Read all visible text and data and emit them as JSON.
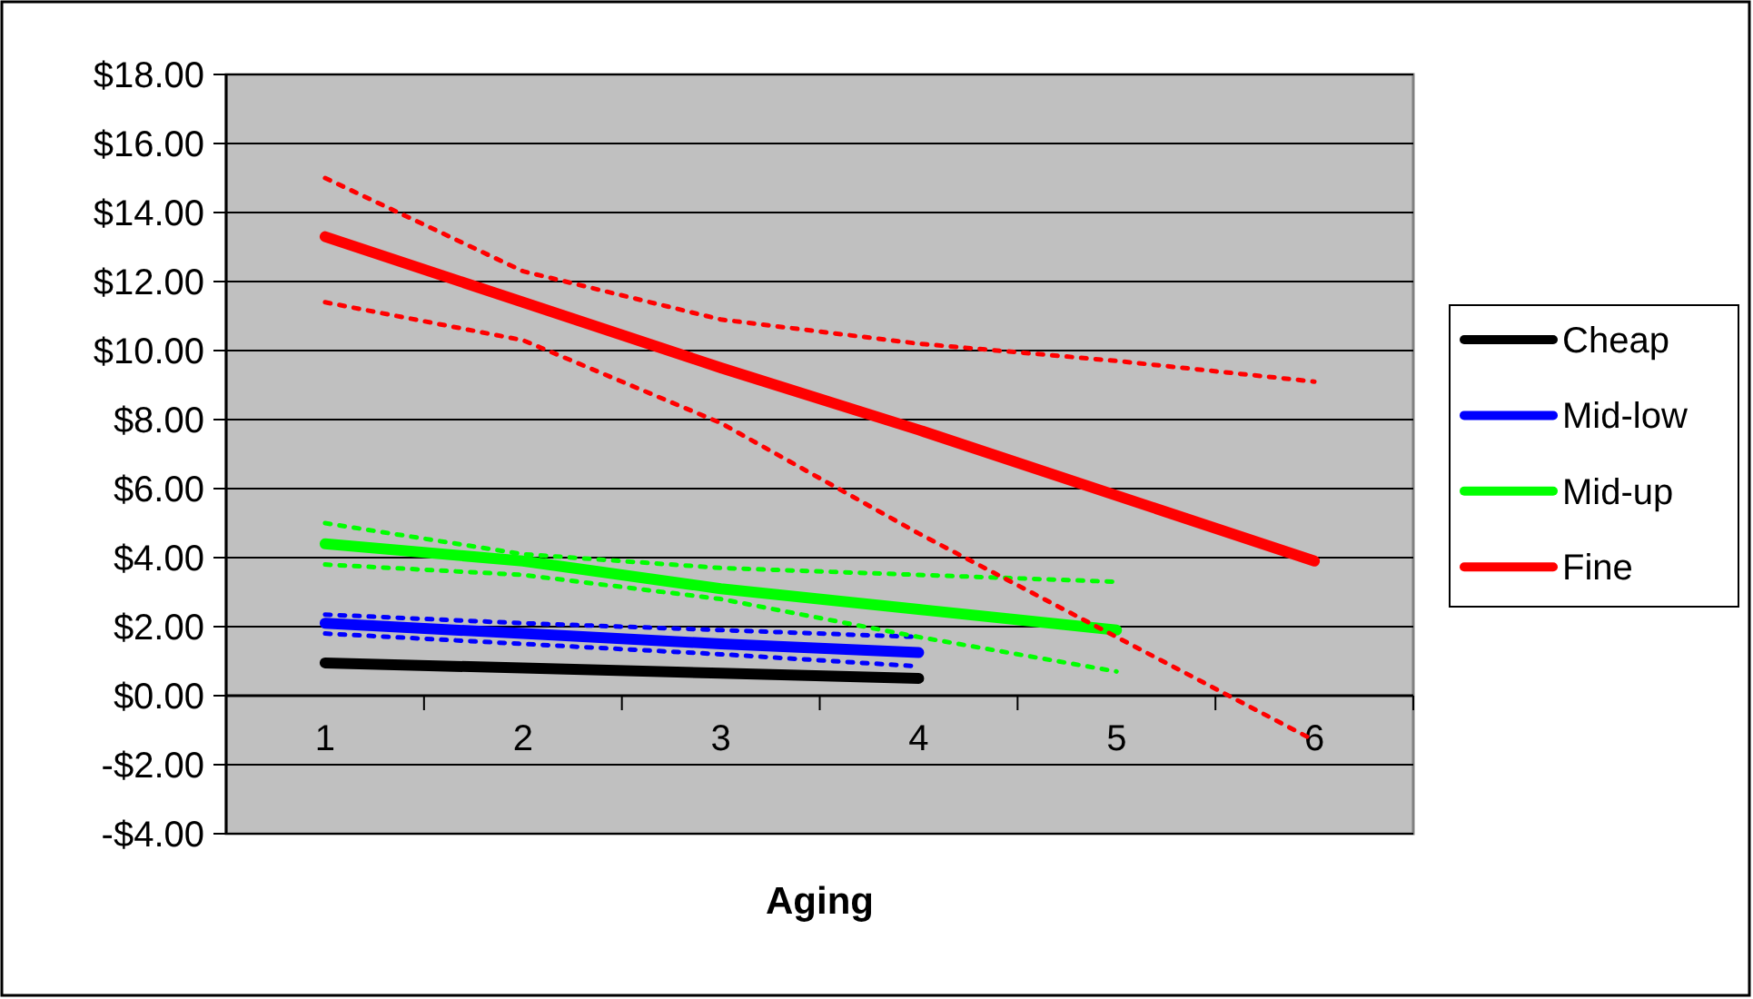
{
  "chart_data": {
    "type": "line",
    "xlabel": "Aging",
    "categories": [
      "1",
      "2",
      "3",
      "4",
      "5",
      "6"
    ],
    "series": [
      {
        "name": "Cheap",
        "color": "#000000",
        "values": [
          0.95,
          0.8,
          0.65,
          0.5,
          null,
          null
        ]
      },
      {
        "name": "Mid-low",
        "color": "#0000ff",
        "values": [
          2.1,
          1.8,
          1.5,
          1.25,
          null,
          null
        ]
      },
      {
        "color": "#0000ff",
        "line_style": "dotted",
        "values": [
          2.35,
          2.1,
          1.9,
          1.7,
          null,
          null
        ]
      },
      {
        "color": "#0000ff",
        "line_style": "dotted",
        "values": [
          1.8,
          1.5,
          1.2,
          0.85,
          null,
          null
        ]
      },
      {
        "name": "Mid-up",
        "color": "#00ff00",
        "values": [
          4.4,
          3.9,
          3.1,
          2.5,
          1.9,
          null
        ]
      },
      {
        "color": "#00ff00",
        "line_style": "dotted",
        "values": [
          5.0,
          4.1,
          3.7,
          3.5,
          3.3,
          null
        ]
      },
      {
        "color": "#00ff00",
        "line_style": "dotted",
        "values": [
          3.8,
          3.5,
          2.8,
          1.7,
          0.7,
          null
        ]
      },
      {
        "name": "Fine",
        "color": "#ff0000",
        "values": [
          13.3,
          11.4,
          9.5,
          7.7,
          5.8,
          3.9
        ]
      },
      {
        "color": "#ff0000",
        "line_style": "dotted",
        "values": [
          15.0,
          12.3,
          10.9,
          10.2,
          9.7,
          9.1
        ]
      },
      {
        "color": "#ff0000",
        "line_style": "dotted",
        "values": [
          11.4,
          10.3,
          7.9,
          4.7,
          1.7,
          -1.3
        ]
      }
    ],
    "ylim": [
      -4,
      18
    ],
    "yticks": [
      {
        "value": -4,
        "label": "-$4.00"
      },
      {
        "value": -2,
        "label": "-$2.00"
      },
      {
        "value": 0,
        "label": "$0.00"
      },
      {
        "value": 2,
        "label": "$2.00"
      },
      {
        "value": 4,
        "label": "$4.00"
      },
      {
        "value": 6,
        "label": "$6.00"
      },
      {
        "value": 8,
        "label": "$8.00"
      },
      {
        "value": 10,
        "label": "$10.00"
      },
      {
        "value": 12,
        "label": "$12.00"
      },
      {
        "value": 14,
        "label": "$14.00"
      },
      {
        "value": 16,
        "label": "$16.00"
      },
      {
        "value": 18,
        "label": "$18.00"
      }
    ],
    "grid": "y",
    "legend": "right",
    "line_style": "solid",
    "marker": "none"
  }
}
